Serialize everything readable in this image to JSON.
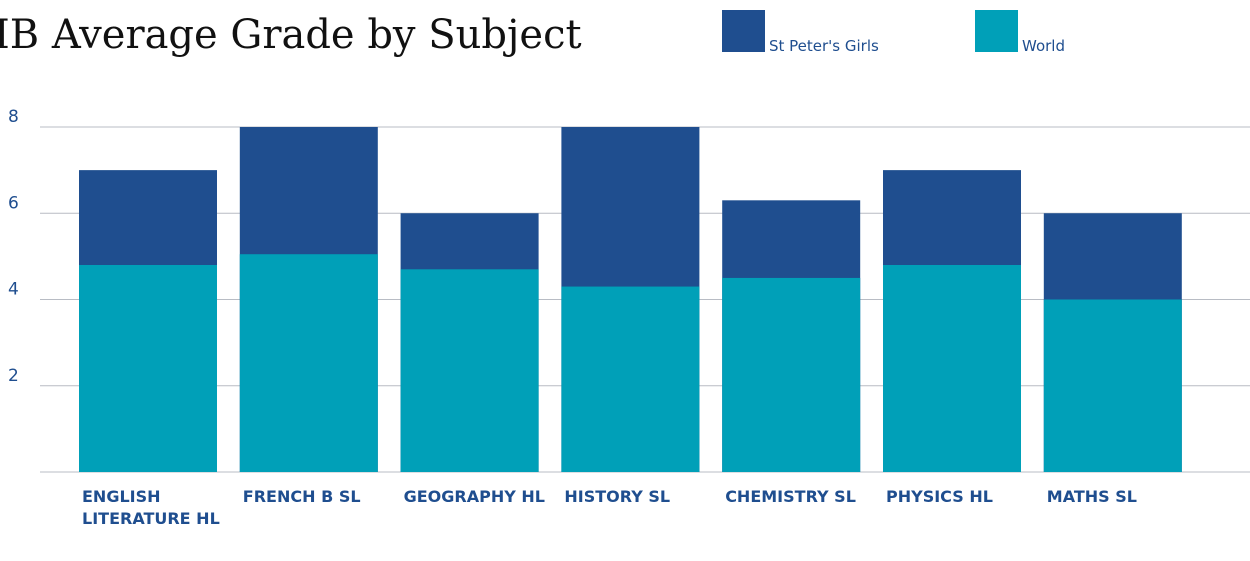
{
  "chart_data": {
    "type": "bar",
    "title": "IB Average Grade by Subject",
    "categories": [
      "ENGLISH LITERATURE HL",
      "FRENCH B SL",
      "GEOGRAPHY HL",
      "HISTORY SL",
      "CHEMISTRY SL",
      "PHYSICS HL",
      "MATHS SL"
    ],
    "series": [
      {
        "name": "St Peter's Girls",
        "color": "#1f4e8f",
        "values": [
          7,
          8,
          6,
          8,
          6.3,
          7,
          6
        ]
      },
      {
        "name": "World",
        "color": "#00a0b8",
        "values": [
          4.8,
          5.05,
          4.7,
          4.3,
          4.5,
          4.8,
          4.0
        ]
      }
    ],
    "ylim": [
      0,
      8
    ],
    "yticks": [
      2,
      4,
      6,
      8
    ],
    "grid": true
  }
}
